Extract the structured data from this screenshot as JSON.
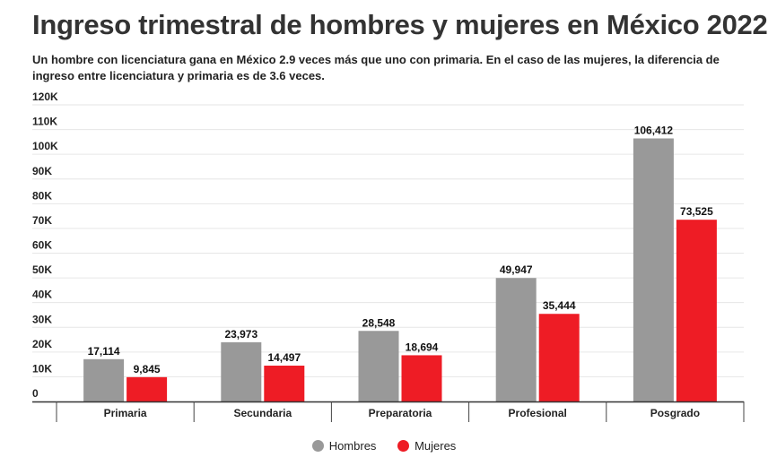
{
  "title": "Ingreso trimestral de hombres y mujeres en México 2022",
  "subtitle": "Un hombre con licenciatura gana en México 2.9 veces más que uno con primaria. En el caso de las mujeres, la diferencia de ingreso entre licenciatura y primaria es de 3.6 veces.",
  "chart_data": {
    "type": "bar",
    "categories": [
      "Primaria",
      "Secundaria",
      "Preparatoria",
      "Profesional",
      "Posgrado"
    ],
    "series": [
      {
        "name": "Hombres",
        "color": "#999999",
        "values": [
          17114,
          23973,
          28548,
          49947,
          106412
        ],
        "labels": [
          "17,114",
          "23,973",
          "28,548",
          "49,947",
          "106,412"
        ]
      },
      {
        "name": "Mujeres",
        "color": "#ee1c25",
        "values": [
          9845,
          14497,
          18694,
          35444,
          73525
        ],
        "labels": [
          "9,845",
          "14,497",
          "18,694",
          "35,444",
          "73,525"
        ]
      }
    ],
    "ylim": [
      0,
      120000
    ],
    "yticks": [
      0,
      10000,
      20000,
      30000,
      40000,
      50000,
      60000,
      70000,
      80000,
      90000,
      100000,
      110000,
      120000
    ],
    "ytick_labels": [
      "0",
      "10K",
      "20K",
      "30K",
      "40K",
      "50K",
      "60K",
      "70K",
      "80K",
      "90K",
      "100K",
      "110K",
      "120K"
    ],
    "grid": true,
    "legend_position": "bottom"
  },
  "legend": {
    "hombres_label": "Hombres",
    "mujeres_label": "Mujeres"
  }
}
